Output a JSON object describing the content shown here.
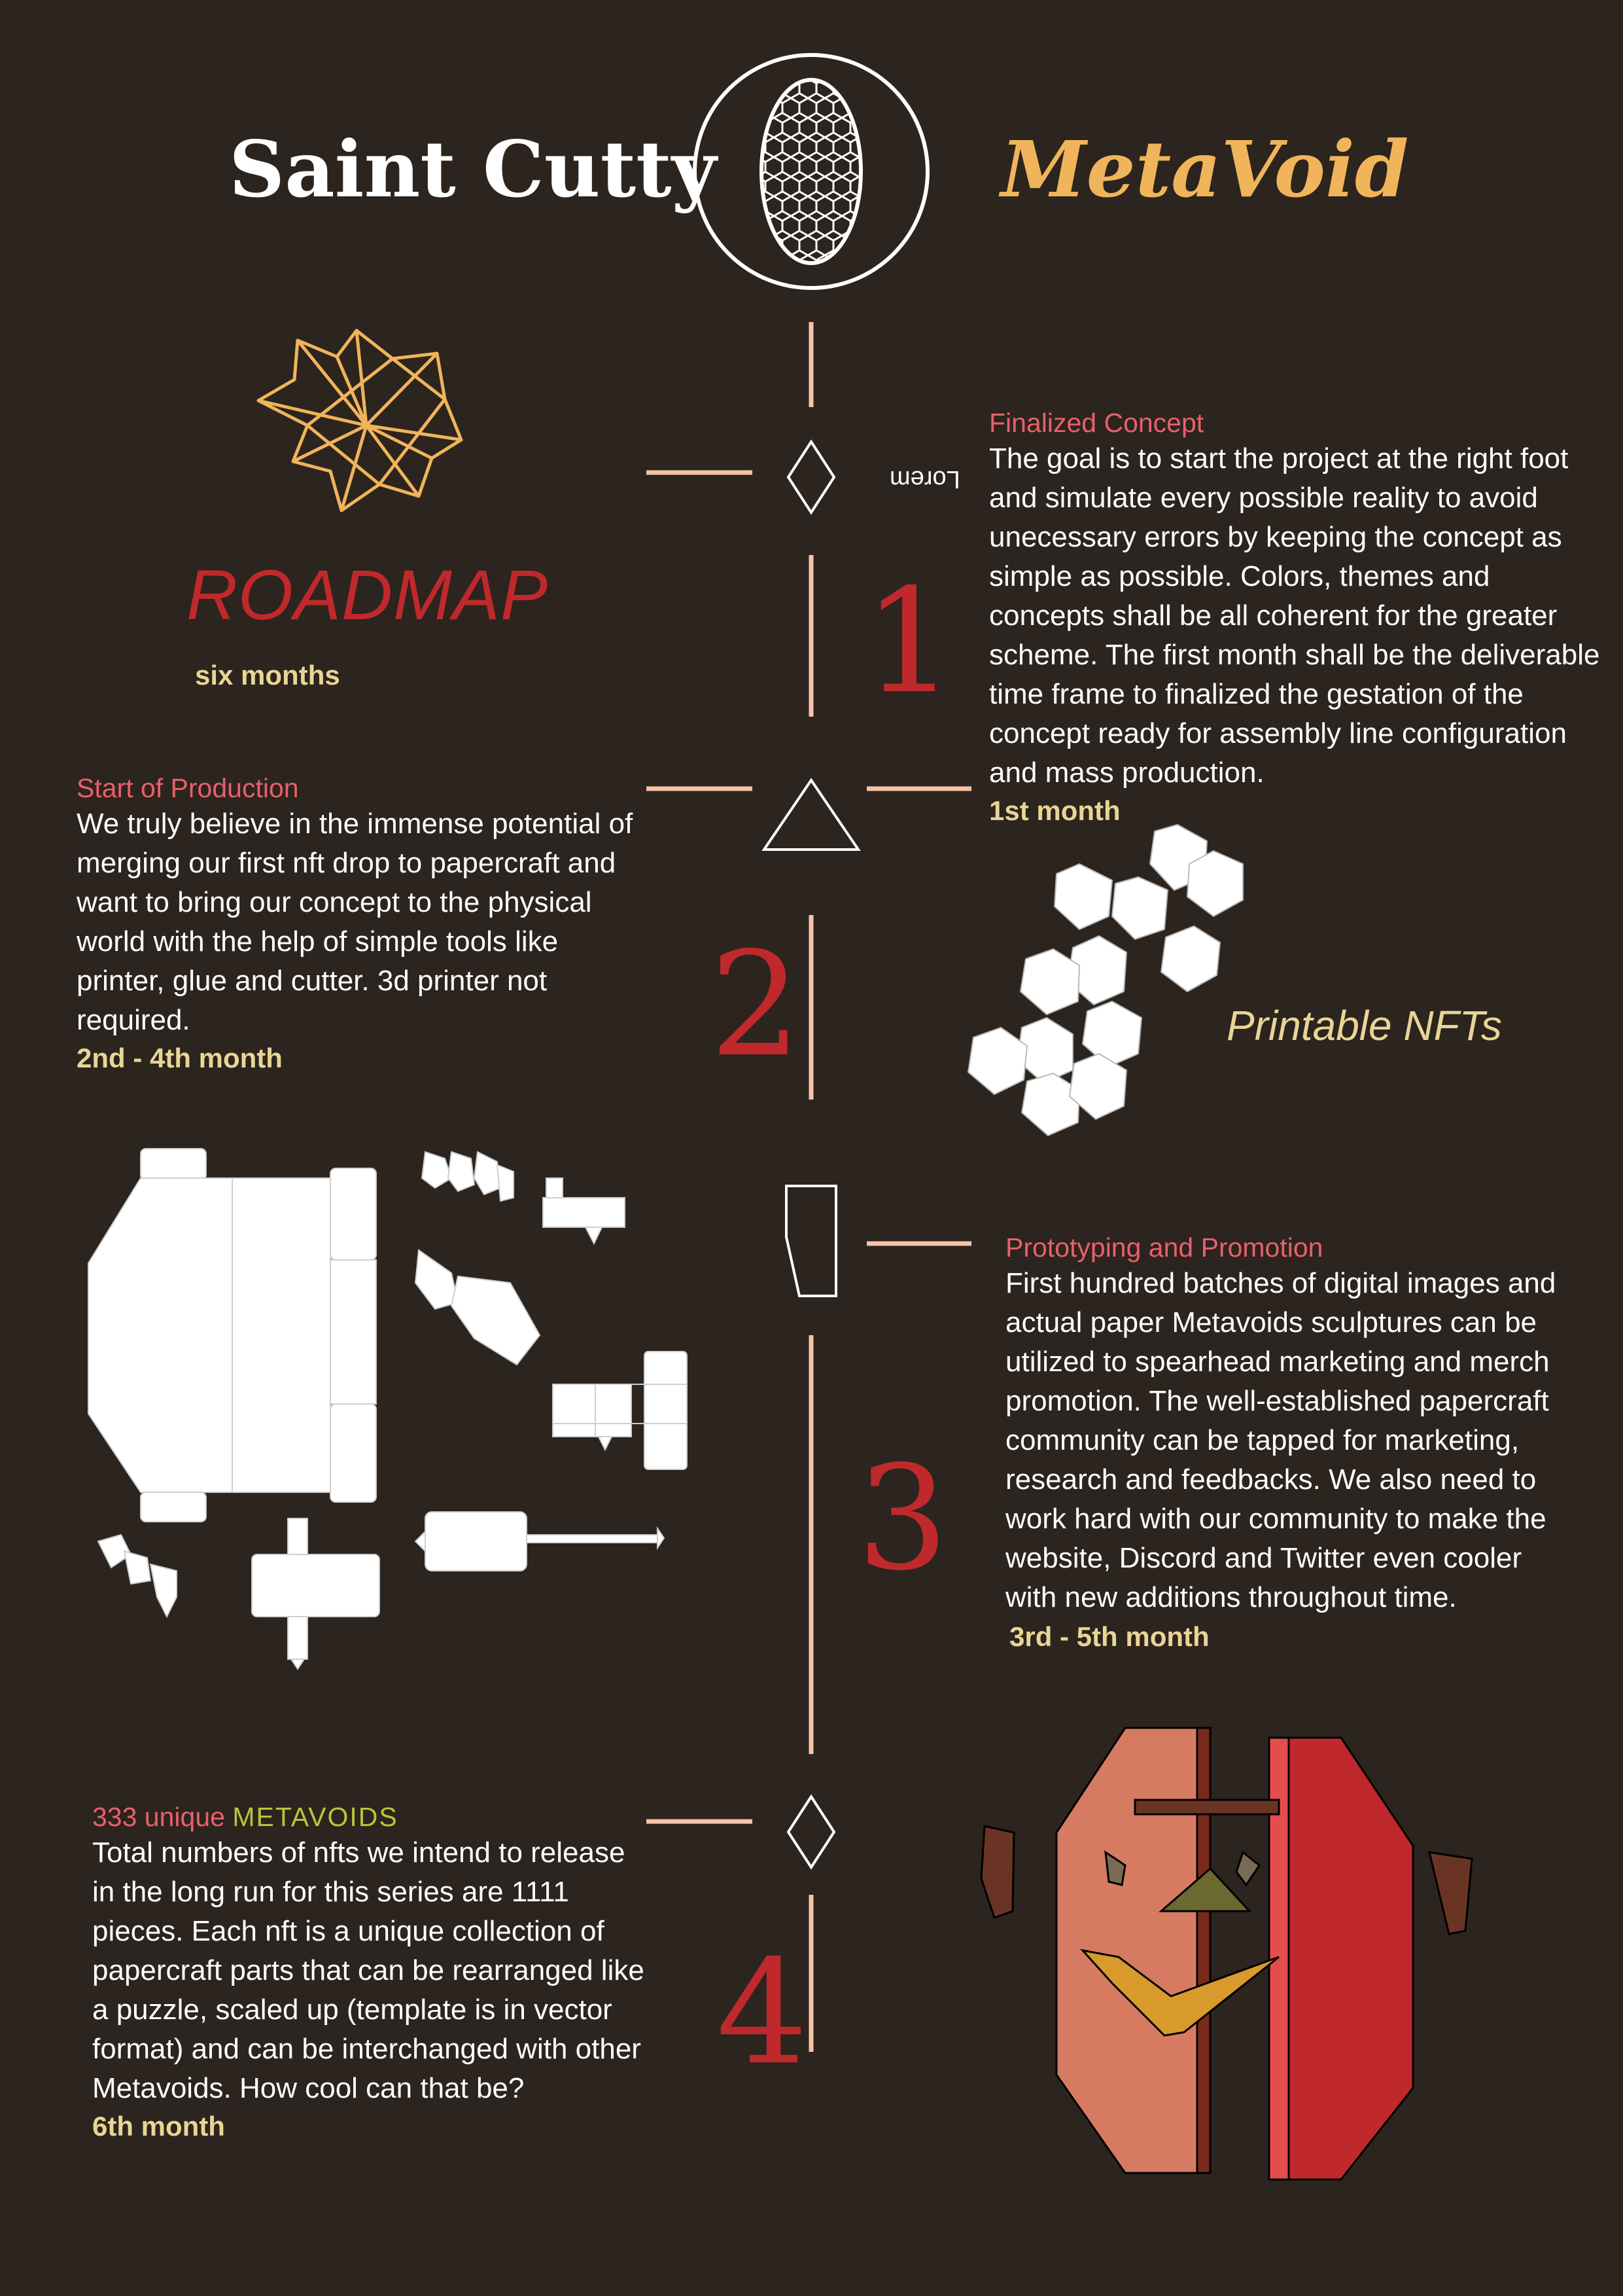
{
  "header": {
    "left_title": "Saint Cutty",
    "right_title": "MetaVoid"
  },
  "roadmap": {
    "title": "ROADMAP",
    "duration": "six months"
  },
  "lorem_label": "Lorem",
  "printable_label": "Printable NFTs",
  "milestones": [
    {
      "number": "1",
      "heading": "Finalized Concept",
      "body": "The goal is to start the project at the right foot and simulate every possible reality to avoid unecessary errors by keeping the concept as simple as possible. Colors, themes and concepts shall be all coherent for the greater scheme. The first month shall be the deliverable time frame to finalized the gestation of the concept ready for assembly line configuration and mass production.",
      "period": "1st month"
    },
    {
      "number": "2",
      "heading": "Start of Production",
      "body": "We truly believe in the immense potential of merging our first nft drop to papercraft and want to bring our concept to the physical world with the help of simple tools like printer, glue and cutter. 3d printer not required.",
      "period": "2nd - 4th month"
    },
    {
      "number": "3",
      "heading": "Prototyping and Promotion",
      "body": "First hundred batches of digital images and actual paper Metavoids sculptures can be utilized to spearhead marketing and merch promotion. The well-established papercraft community can be tapped for marketing, research and feedbacks. We also need to work hard with our community to make the website, Discord and Twitter even cooler with new additions throughout time.",
      "period": "3rd - 5th month"
    },
    {
      "number": "4",
      "heading_prefix": "333 unique ",
      "heading_highlight": "METAVOIDS",
      "body": "Total numbers of nfts we intend to release in the long run for this series are 1111 pieces. Each nft is a unique collection of papercraft parts that can be rearranged like a puzzle, scaled up (template is in vector format) and can be interchanged with other Metavoids. How cool can that be?",
      "period": "6th month"
    }
  ],
  "colors": {
    "background": "#2c241e",
    "accent_red": "#c0292c",
    "accent_gold": "#f0b45a",
    "cream": "#e9d595",
    "line": "#f5c3a8",
    "heading_pink": "#e8606b"
  }
}
